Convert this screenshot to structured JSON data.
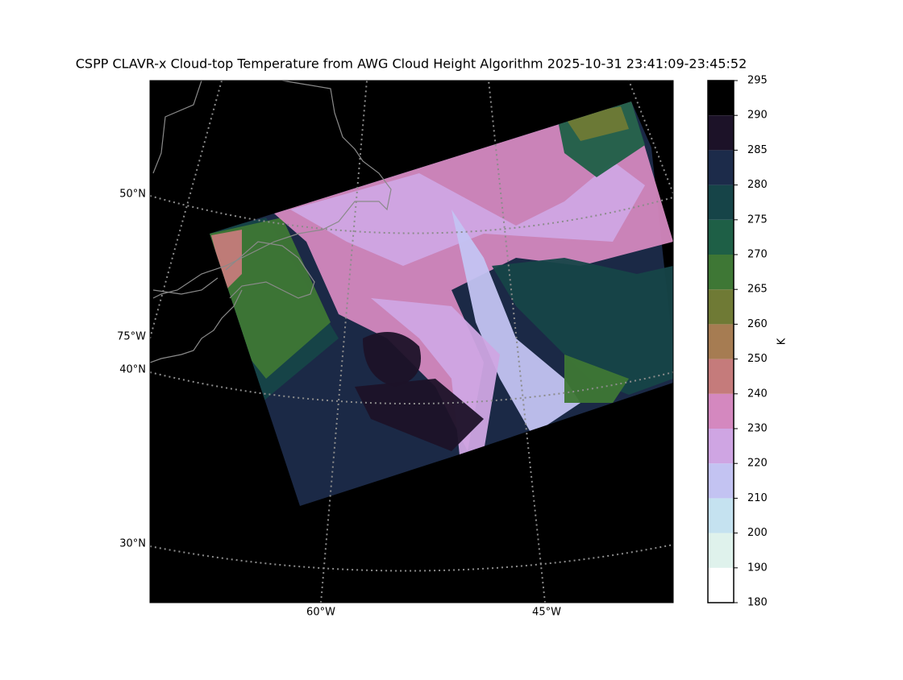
{
  "map": {
    "title": "CSPP CLAVR-x Cloud-top Temperature from AWG Cloud Height Algorithm 2025-10-31 23:41:09-23:45:52",
    "lat_labels": [
      "50°N",
      "40°N",
      "30°N"
    ],
    "lon_labels": [
      "75°W",
      "60°W",
      "45°W"
    ],
    "colorbar": {
      "label": "K",
      "levels": [
        180,
        190,
        200,
        210,
        220,
        230,
        240,
        250,
        260,
        265,
        270,
        275,
        280,
        285,
        290,
        295
      ],
      "colors": [
        "#ffffff",
        "#dff2ec",
        "#c5e2f0",
        "#c3c3f2",
        "#cfa5e3",
        "#d488bf",
        "#c57b7b",
        "#a67c52",
        "#6f7a35",
        "#3e7735",
        "#1e5f46",
        "#164448",
        "#1c2b4a",
        "#1c1228",
        "#000000"
      ]
    }
  }
}
